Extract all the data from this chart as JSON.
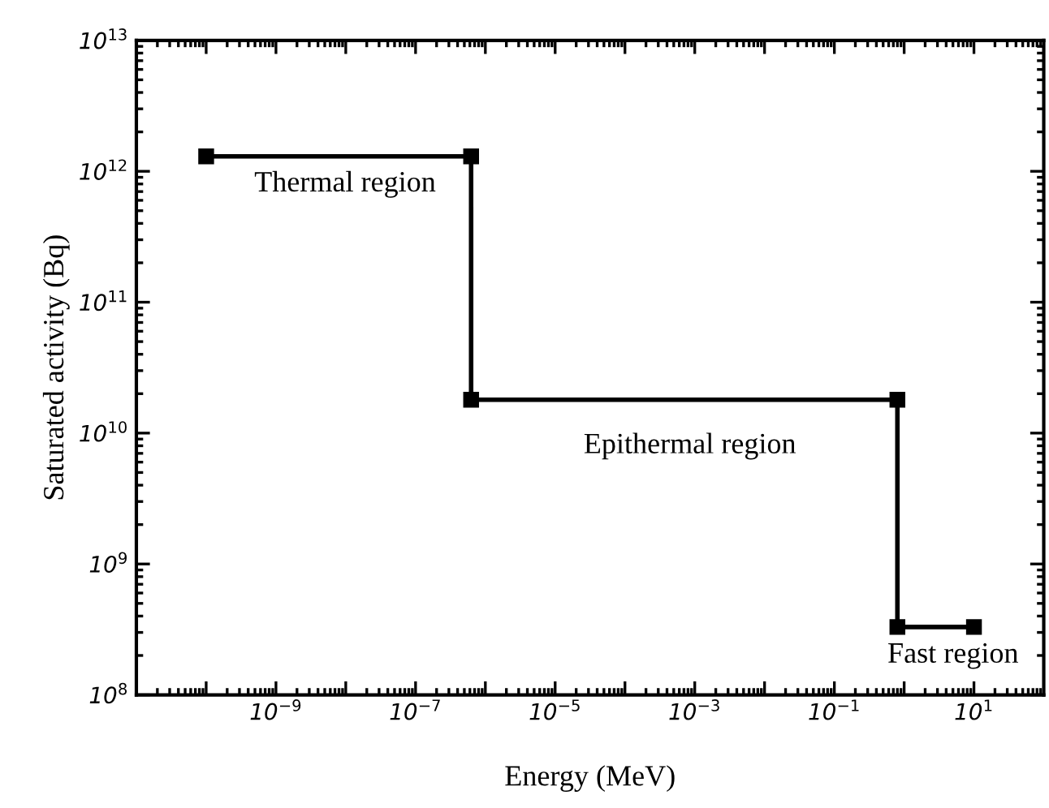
{
  "chart_data": {
    "type": "line",
    "xlabel": "Energy (MeV)",
    "ylabel": "Saturated activity (Bq)",
    "log": "xy",
    "x": [
      1e-10,
      6.25e-07,
      6.25e-07,
      0.8,
      0.8,
      10
    ],
    "series": [
      {
        "color": "#000000",
        "values": [
          1300000000000.0,
          1300000000000.0,
          18000000000.0,
          18000000000.0,
          330000000.0,
          330000000.0
        ]
      }
    ],
    "marker": "square",
    "line_style": "solid",
    "grid": false,
    "xlim": [
      1e-11,
      100
    ],
    "ylim": [
      100000000.0,
      10000000000000.0
    ],
    "xticks": [
      {
        "value": 1e-10,
        "label": null
      },
      {
        "value": 1e-09,
        "label": "10$^{−9}$"
      },
      {
        "value": 1e-08,
        "label": null
      },
      {
        "value": 1e-07,
        "label": "10$^{−7}$"
      },
      {
        "value": 1e-06,
        "label": null
      },
      {
        "value": 1e-05,
        "label": "10$^{−5}$"
      },
      {
        "value": 0.0001,
        "label": null
      },
      {
        "value": 0.001,
        "label": "10$^{−3}$"
      },
      {
        "value": 0.01,
        "label": null
      },
      {
        "value": 0.1,
        "label": "10$^{−1}$"
      },
      {
        "value": 1,
        "label": null
      },
      {
        "value": 10,
        "label": "10$^{1}$"
      }
    ],
    "yticks": [
      {
        "value": 100000000.0,
        "label": "10$^{8}$"
      },
      {
        "value": 1000000000.0,
        "label": "10$^{9}$"
      },
      {
        "value": 10000000000.0,
        "label": "10$^{10}$"
      },
      {
        "value": 100000000000.0,
        "label": "10$^{11}$"
      },
      {
        "value": 1000000000000.0,
        "label": "10$^{12}$"
      },
      {
        "value": 10000000000000.0,
        "label": "10$^{13}$"
      }
    ],
    "annotations": [
      "Thermal region",
      "Epithermal region",
      "Fast region"
    ]
  }
}
